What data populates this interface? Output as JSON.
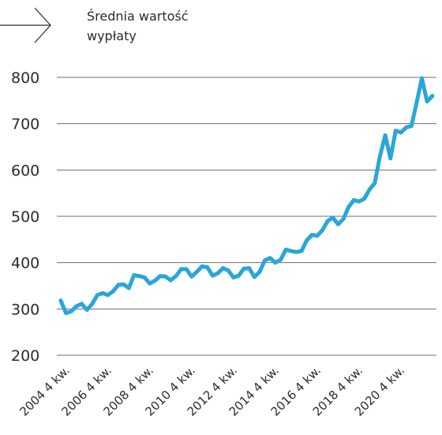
{
  "chart_data": {
    "type": "line",
    "title_lines": [
      "Średnia wartość",
      "wypłaty"
    ],
    "xlabel": "",
    "ylabel": "",
    "ylim": [
      200,
      800
    ],
    "yticks": [
      200,
      300,
      400,
      500,
      600,
      700,
      800
    ],
    "grid": true,
    "legend": "none",
    "line_color": "#2aa6d9",
    "grid_color": "#6e6e6e",
    "x_tick_labels": [
      "2004 4 kw.",
      "2006 4 kw.",
      "2008 4 kw.",
      "2010 4 kw.",
      "2012 4 kw.",
      "2014 4 kw.",
      "2016 4 kw.",
      "2018 4 kw.",
      "2020 4 kw."
    ],
    "x_tick_quarter_index": [
      0,
      8,
      16,
      24,
      32,
      40,
      48,
      56,
      64
    ],
    "quarters": [
      "2004 4 kw.",
      "2005 1 kw.",
      "2005 2 kw.",
      "2005 3 kw.",
      "2005 4 kw.",
      "2006 1 kw.",
      "2006 2 kw.",
      "2006 3 kw.",
      "2006 4 kw.",
      "2007 1 kw.",
      "2007 2 kw.",
      "2007 3 kw.",
      "2007 4 kw.",
      "2008 1 kw.",
      "2008 2 kw.",
      "2008 3 kw.",
      "2008 4 kw.",
      "2009 1 kw.",
      "2009 2 kw.",
      "2009 3 kw.",
      "2009 4 kw.",
      "2010 1 kw.",
      "2010 2 kw.",
      "2010 3 kw.",
      "2010 4 kw.",
      "2011 1 kw.",
      "2011 2 kw.",
      "2011 3 kw.",
      "2011 4 kw.",
      "2012 1 kw.",
      "2012 2 kw.",
      "2012 3 kw.",
      "2012 4 kw.",
      "2013 1 kw.",
      "2013 2 kw.",
      "2013 3 kw.",
      "2013 4 kw.",
      "2014 1 kw.",
      "2014 2 kw.",
      "2014 3 kw.",
      "2014 4 kw.",
      "2015 1 kw.",
      "2015 2 kw.",
      "2015 3 kw.",
      "2015 4 kw.",
      "2016 1 kw.",
      "2016 2 kw.",
      "2016 3 kw.",
      "2016 4 kw.",
      "2017 1 kw.",
      "2017 2 kw.",
      "2017 3 kw.",
      "2017 4 kw.",
      "2018 1 kw.",
      "2018 2 kw.",
      "2018 3 kw.",
      "2018 4 kw.",
      "2019 1 kw.",
      "2019 2 kw.",
      "2019 3 kw.",
      "2019 4 kw.",
      "2020 1 kw.",
      "2020 2 kw.",
      "2020 3 kw.",
      "2020 4 kw.",
      "2021 1 kw.",
      "2021 2 kw.",
      "2021 3 kw.",
      "2021 4 kw.",
      "2022 1 kw.",
      "2022 2 kw.",
      "2022 3 kw."
    ],
    "values": [
      318,
      291,
      295,
      306,
      311,
      298,
      311,
      330,
      334,
      330,
      338,
      352,
      353,
      345,
      373,
      371,
      368,
      355,
      361,
      371,
      370,
      362,
      371,
      386,
      386,
      370,
      380,
      392,
      390,
      372,
      377,
      388,
      383,
      368,
      372,
      387,
      388,
      369,
      380,
      405,
      410,
      400,
      406,
      428,
      425,
      423,
      425,
      448,
      460,
      458,
      470,
      490,
      497,
      483,
      494,
      520,
      535,
      532,
      538,
      558,
      572,
      630,
      675,
      625,
      685,
      681,
      692,
      695,
      745,
      798,
      748,
      760
    ]
  },
  "nav": {
    "arrow_icon": "arrow-right-icon"
  }
}
